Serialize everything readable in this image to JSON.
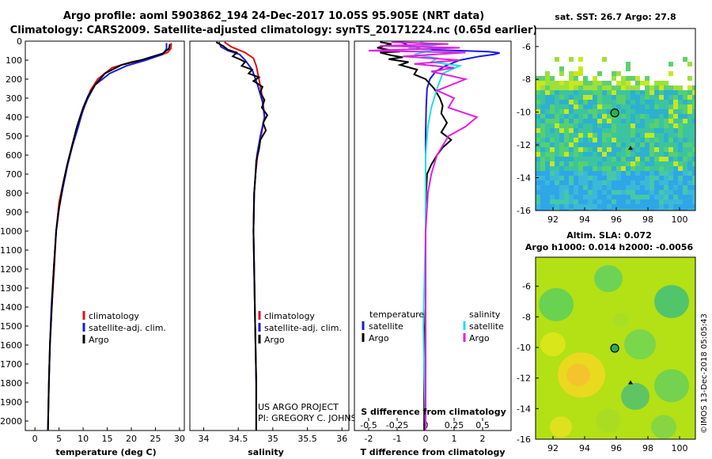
{
  "header": {
    "line1": "Argo profile: aoml 5903862_194 24-Dec-2017 10.05S 95.905E (NRT data)",
    "line2": "Climatology: CARS2009. Satellite-adjusted climatology: synTS_20171224.nc (0.65d earlier)"
  },
  "colors": {
    "climatology": "#e01010",
    "satellite": "#1a1ae6",
    "argo": "#000000",
    "sal_sat": "#20e0e0",
    "sal_argo": "#e020e0"
  },
  "chart_data": [
    {
      "type": "line",
      "name": "temperature",
      "xlabel": "temperature (deg C)",
      "xlim": [
        -2,
        31
      ],
      "ylim": [
        2050,
        0
      ],
      "xticks": [
        0,
        5,
        10,
        15,
        20,
        25,
        30
      ],
      "yticks": [
        0,
        100,
        200,
        300,
        400,
        500,
        600,
        700,
        800,
        900,
        1000,
        1100,
        1200,
        1300,
        1400,
        1500,
        1600,
        1700,
        1800,
        1900,
        2000
      ],
      "legend": [
        "climatology",
        "satellite-adj. clim.",
        "Argo"
      ],
      "series": [
        {
          "name": "climatology",
          "color": "#e01010",
          "points": [
            [
              28.3,
              10
            ],
            [
              28.2,
              40
            ],
            [
              27.5,
              60
            ],
            [
              24,
              90
            ],
            [
              20,
              110
            ],
            [
              16,
              140
            ],
            [
              13,
              200
            ],
            [
              11.5,
              260
            ],
            [
              10.5,
              330
            ],
            [
              9.5,
              400
            ],
            [
              8,
              520
            ],
            [
              7,
              620
            ],
            [
              6,
              730
            ],
            [
              5,
              850
            ],
            [
              4.4,
              1000
            ],
            [
              4,
              1200
            ],
            [
              3.5,
              1400
            ],
            [
              3.1,
              1600
            ],
            [
              2.9,
              1800
            ],
            [
              2.7,
              2050
            ]
          ]
        },
        {
          "name": "satellite-adj. clim.",
          "color": "#1a1ae6",
          "points": [
            [
              27.3,
              10
            ],
            [
              27.3,
              40
            ],
            [
              26.5,
              70
            ],
            [
              23,
              100
            ],
            [
              19,
              130
            ],
            [
              15.5,
              170
            ],
            [
              12.5,
              230
            ],
            [
              11,
              300
            ],
            [
              10,
              360
            ],
            [
              9,
              450
            ],
            [
              7.8,
              550
            ],
            [
              6.8,
              650
            ],
            [
              5.9,
              760
            ],
            [
              5,
              880
            ],
            [
              4.4,
              1000
            ],
            [
              3.9,
              1200
            ],
            [
              3.4,
              1400
            ],
            [
              3.1,
              1600
            ],
            [
              2.9,
              1800
            ],
            [
              2.7,
              2050
            ]
          ]
        },
        {
          "name": "Argo",
          "color": "#000000",
          "points": [
            [
              28,
              15
            ],
            [
              27.8,
              40
            ],
            [
              26.5,
              65
            ],
            [
              22,
              100
            ],
            [
              18,
              125
            ],
            [
              14.5,
              170
            ],
            [
              12.5,
              230
            ],
            [
              11,
              290
            ],
            [
              10,
              350
            ],
            [
              8.7,
              450
            ],
            [
              7.7,
              550
            ],
            [
              6.6,
              660
            ],
            [
              5.7,
              770
            ],
            [
              4.9,
              900
            ],
            [
              4.4,
              1000
            ],
            [
              3.9,
              1200
            ],
            [
              3.5,
              1400
            ],
            [
              3.1,
              1600
            ],
            [
              2.9,
              1800
            ],
            [
              2.7,
              2050
            ]
          ]
        }
      ]
    },
    {
      "type": "line",
      "name": "salinity",
      "xlabel": "salinity",
      "xlim": [
        33.8,
        36.1
      ],
      "ylim": [
        2050,
        0
      ],
      "xticks": [
        34,
        34.5,
        35,
        35.5,
        36
      ],
      "legend": [
        "climatology",
        "satellite-adj. clim.",
        "Argo"
      ],
      "series": [
        {
          "name": "climatology",
          "color": "#e01010",
          "points": [
            [
              34.3,
              5
            ],
            [
              34.4,
              30
            ],
            [
              34.6,
              60
            ],
            [
              34.72,
              90
            ],
            [
              34.76,
              130
            ],
            [
              34.8,
              200
            ],
            [
              34.85,
              300
            ],
            [
              34.88,
              400
            ],
            [
              34.83,
              500
            ],
            [
              34.78,
              600
            ],
            [
              34.75,
              700
            ],
            [
              34.73,
              800
            ],
            [
              34.72,
              1000
            ],
            [
              34.73,
              1200
            ],
            [
              34.74,
              1400
            ],
            [
              34.75,
              1600
            ],
            [
              34.76,
              1800
            ],
            [
              34.76,
              2050
            ]
          ]
        },
        {
          "name": "satellite-adj. clim.",
          "color": "#1a1ae6",
          "points": [
            [
              34.22,
              5
            ],
            [
              34.25,
              30
            ],
            [
              34.35,
              50
            ],
            [
              34.52,
              70
            ],
            [
              34.6,
              100
            ],
            [
              34.7,
              150
            ],
            [
              34.78,
              230
            ],
            [
              34.85,
              320
            ],
            [
              34.88,
              400
            ],
            [
              34.82,
              500
            ],
            [
              34.77,
              600
            ],
            [
              34.75,
              700
            ],
            [
              34.73,
              800
            ],
            [
              34.72,
              1000
            ],
            [
              34.73,
              1200
            ],
            [
              34.74,
              1400
            ],
            [
              34.75,
              1600
            ],
            [
              34.76,
              1800
            ],
            [
              34.76,
              2050
            ]
          ]
        },
        {
          "name": "Argo",
          "color": "#000000",
          "points": [
            [
              34.18,
              5
            ],
            [
              34.28,
              25
            ],
            [
              34.35,
              45
            ],
            [
              34.48,
              60
            ],
            [
              34.42,
              80
            ],
            [
              34.52,
              95
            ],
            [
              34.6,
              110
            ],
            [
              34.55,
              130
            ],
            [
              34.7,
              150
            ],
            [
              34.65,
              170
            ],
            [
              34.8,
              190
            ],
            [
              34.72,
              210
            ],
            [
              34.85,
              240
            ],
            [
              34.82,
              270
            ],
            [
              34.88,
              310
            ],
            [
              34.84,
              350
            ],
            [
              34.92,
              390
            ],
            [
              34.86,
              430
            ],
            [
              34.9,
              470
            ],
            [
              34.82,
              520
            ],
            [
              34.8,
              570
            ],
            [
              34.76,
              630
            ],
            [
              34.75,
              700
            ],
            [
              34.73,
              800
            ],
            [
              34.72,
              1000
            ],
            [
              34.73,
              1200
            ],
            [
              34.74,
              1400
            ],
            [
              34.75,
              1600
            ],
            [
              34.76,
              1800
            ],
            [
              34.76,
              2050
            ]
          ]
        }
      ]
    },
    {
      "type": "line",
      "name": "difference",
      "xlabel": "T difference from climatology",
      "xlabel2": "S difference from climatology",
      "xlim": [
        -2.5,
        3.0
      ],
      "ylim": [
        2050,
        0
      ],
      "xticks": [
        -2,
        -1,
        0,
        1,
        2
      ],
      "xticks2": [
        "-0.5",
        "-0.25",
        "0",
        "0.25",
        "0.5"
      ],
      "legend_temp_title": "temperature",
      "legend_sal_title": "salinity",
      "legend_items": [
        "satellite",
        "Argo"
      ],
      "series": [
        {
          "name": "temperature satellite",
          "color": "#1a1ae6",
          "points": [
            [
              -0.9,
              5
            ],
            [
              -0.7,
              15
            ],
            [
              -0.6,
              25
            ],
            [
              -0.4,
              35
            ],
            [
              0,
              45
            ],
            [
              1.2,
              50
            ],
            [
              2.2,
              55
            ],
            [
              2.6,
              62
            ],
            [
              2.4,
              70
            ],
            [
              1.9,
              80
            ],
            [
              1.2,
              100
            ],
            [
              0.7,
              130
            ],
            [
              0.35,
              160
            ],
            [
              0.15,
              200
            ],
            [
              0.05,
              250
            ],
            [
              0.02,
              350
            ],
            [
              0,
              500
            ],
            [
              0,
              2050
            ]
          ]
        },
        {
          "name": "temperature Argo",
          "color": "#000000",
          "points": [
            [
              -1.6,
              5
            ],
            [
              -1.2,
              15
            ],
            [
              -1.7,
              35
            ],
            [
              -1.3,
              45
            ],
            [
              -0.9,
              55
            ],
            [
              -1.6,
              60
            ],
            [
              -1.2,
              75
            ],
            [
              -0.8,
              85
            ],
            [
              -1.3,
              95
            ],
            [
              -0.6,
              110
            ],
            [
              -0.9,
              125
            ],
            [
              -0.3,
              150
            ],
            [
              -0.4,
              175
            ],
            [
              0,
              200
            ],
            [
              0.3,
              250
            ],
            [
              0.5,
              300
            ],
            [
              0.6,
              340
            ],
            [
              0.55,
              380
            ],
            [
              0.75,
              430
            ],
            [
              0.55,
              480
            ],
            [
              0.9,
              520
            ],
            [
              0.6,
              560
            ],
            [
              0.4,
              600
            ],
            [
              0.2,
              650
            ],
            [
              0.05,
              700
            ],
            [
              0.02,
              800
            ],
            [
              0,
              1000
            ],
            [
              0,
              1400
            ],
            [
              -0.05,
              1600
            ],
            [
              -0.05,
              1800
            ],
            [
              -0.05,
              2050
            ]
          ]
        },
        {
          "name": "salinity satellite",
          "color": "#20e0e0",
          "points": [
            [
              -0.05,
              5
            ],
            [
              0.1,
              20
            ],
            [
              -0.15,
              35
            ],
            [
              0.05,
              50
            ],
            [
              -0.1,
              70
            ],
            [
              0.1,
              90
            ],
            [
              0.05,
              110
            ],
            [
              0.3,
              130
            ],
            [
              0.15,
              170
            ],
            [
              0.1,
              250
            ],
            [
              0.05,
              350
            ],
            [
              0.02,
              450
            ],
            [
              0,
              600
            ],
            [
              0,
              1000
            ],
            [
              -0.02,
              1500
            ],
            [
              0,
              2050
            ]
          ]
        },
        {
          "name": "salinity Argo",
          "color": "#e020e0",
          "points": [
            [
              -0.3,
              5
            ],
            [
              0.2,
              15
            ],
            [
              -0.4,
              25
            ],
            [
              0.3,
              35
            ],
            [
              -0.5,
              50
            ],
            [
              0.35,
              60
            ],
            [
              -0.2,
              80
            ],
            [
              0.3,
              100
            ],
            [
              -0.1,
              120
            ],
            [
              0.25,
              140
            ],
            [
              0.05,
              160
            ],
            [
              0.35,
              200
            ],
            [
              0.1,
              260
            ],
            [
              0.25,
              300
            ],
            [
              0.2,
              350
            ],
            [
              0.45,
              400
            ],
            [
              0.35,
              450
            ],
            [
              0.2,
              500
            ],
            [
              0.15,
              550
            ],
            [
              0.1,
              600
            ],
            [
              0.05,
              700
            ],
            [
              0.02,
              800
            ],
            [
              0,
              1000
            ],
            [
              0,
              2050
            ]
          ]
        }
      ]
    },
    {
      "type": "heatmap",
      "name": "sst-map",
      "title": "sat. SST: 26.7 Argo: 27.8",
      "xticks": [
        "92",
        "94",
        "96",
        "98",
        "100"
      ],
      "yticks": [
        "-6",
        "-8",
        "-10",
        "-12",
        "-14",
        "-16"
      ],
      "xlim": [
        90.9,
        101
      ],
      "ylim": [
        -16,
        -4.9
      ],
      "argo_position": [
        95.905,
        -10.05
      ],
      "float_marker": [
        96.9,
        -12.2
      ]
    },
    {
      "type": "heatmap",
      "name": "sla-map",
      "title1": "Altim. SLA: 0.072",
      "title2": "Argo h1000: 0.014 h2000: -0.0056",
      "xticks": [
        "92",
        "94",
        "96",
        "98",
        "100"
      ],
      "yticks": [
        "-6",
        "-8",
        "-10",
        "-12",
        "-14",
        "-16"
      ],
      "xlim": [
        90.9,
        101
      ],
      "ylim": [
        -16,
        -4.1
      ],
      "argo_position": [
        95.905,
        -10.05
      ],
      "float_marker": [
        96.9,
        -12.3
      ]
    }
  ],
  "legend_labels": {
    "climatology": "climatology",
    "satellite_adj": "satellite-adj. clim.",
    "argo": "Argo"
  },
  "credits": {
    "project": "US ARGO PROJECT",
    "pi": "PI: GREGORY C. JOHNSON",
    "watermark": "©IMOS 13-Dec-2018 05:05:43"
  }
}
